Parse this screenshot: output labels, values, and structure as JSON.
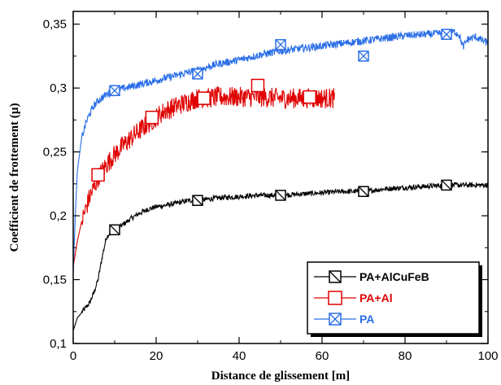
{
  "chart_data": {
    "type": "line",
    "xlabel": "Distance de glissement [m]",
    "ylabel": "Coefficient de frottement (µ)",
    "xlim": [
      0,
      100
    ],
    "ylim": [
      0.1,
      0.36
    ],
    "x_ticks": [
      0,
      20,
      40,
      60,
      80,
      100
    ],
    "x_tick_labels": [
      "0",
      "20",
      "40",
      "60",
      "80",
      "100"
    ],
    "y_ticks": [
      0.1,
      0.15,
      0.2,
      0.25,
      0.3,
      0.35
    ],
    "y_tick_labels": [
      "0,1",
      "0,15",
      "0,2",
      "0,25",
      "0,3",
      "0,35"
    ],
    "grid": false,
    "legend_position": "bottom-right",
    "series": [
      {
        "name": "PA+AlCuFeB",
        "color": "#000000",
        "marker": "square-slash",
        "noise": 0.002,
        "x": [
          0,
          0.5,
          1,
          2,
          3,
          4,
          5,
          6,
          7,
          8,
          9,
          10,
          12,
          14,
          16,
          18,
          20,
          22,
          25,
          28,
          30,
          35,
          40,
          45,
          50,
          55,
          60,
          65,
          70,
          75,
          80,
          85,
          90,
          95,
          100
        ],
        "y": [
          0.11,
          0.115,
          0.12,
          0.124,
          0.128,
          0.132,
          0.14,
          0.15,
          0.168,
          0.183,
          0.187,
          0.189,
          0.193,
          0.198,
          0.202,
          0.205,
          0.207,
          0.208,
          0.21,
          0.212,
          0.212,
          0.214,
          0.215,
          0.216,
          0.216,
          0.217,
          0.218,
          0.219,
          0.219,
          0.221,
          0.222,
          0.223,
          0.224,
          0.224,
          0.224
        ],
        "marker_x": [
          10,
          30,
          50,
          70,
          90
        ],
        "marker_y": [
          0.189,
          0.212,
          0.216,
          0.219,
          0.224
        ]
      },
      {
        "name": "PA+Al",
        "color": "#e00000",
        "marker": "square",
        "noise": 0.008,
        "x": [
          0,
          1,
          2,
          3,
          4,
          5,
          6,
          8,
          10,
          12,
          15,
          18,
          20,
          22,
          25,
          28,
          30,
          32,
          35,
          40,
          45,
          50,
          55,
          60,
          63
        ],
        "y": [
          0.16,
          0.18,
          0.195,
          0.205,
          0.215,
          0.222,
          0.23,
          0.24,
          0.248,
          0.255,
          0.264,
          0.272,
          0.277,
          0.282,
          0.286,
          0.29,
          0.292,
          0.292,
          0.293,
          0.293,
          0.293,
          0.292,
          0.292,
          0.292,
          0.292
        ],
        "marker_x": [
          6,
          19,
          31.5,
          44.5,
          57
        ],
        "marker_y": [
          0.232,
          0.277,
          0.292,
          0.302,
          0.293
        ]
      },
      {
        "name": "PA",
        "color": "#2a6ee8",
        "marker": "square-x",
        "noise": 0.003,
        "x": [
          0,
          0.5,
          1,
          2,
          3,
          4,
          5,
          6,
          8,
          10,
          15,
          20,
          25,
          30,
          35,
          40,
          45,
          50,
          55,
          60,
          65,
          70,
          75,
          80,
          85,
          90,
          92,
          93,
          94,
          95,
          97,
          100
        ],
        "y": [
          0.155,
          0.2,
          0.235,
          0.26,
          0.272,
          0.28,
          0.286,
          0.29,
          0.295,
          0.298,
          0.302,
          0.306,
          0.31,
          0.314,
          0.319,
          0.322,
          0.326,
          0.329,
          0.331,
          0.333,
          0.335,
          0.337,
          0.339,
          0.341,
          0.342,
          0.343,
          0.344,
          0.342,
          0.332,
          0.338,
          0.34,
          0.335
        ],
        "marker_x": [
          10,
          30,
          50,
          70,
          90
        ],
        "marker_y": [
          0.298,
          0.311,
          0.334,
          0.325,
          0.342
        ]
      }
    ]
  }
}
